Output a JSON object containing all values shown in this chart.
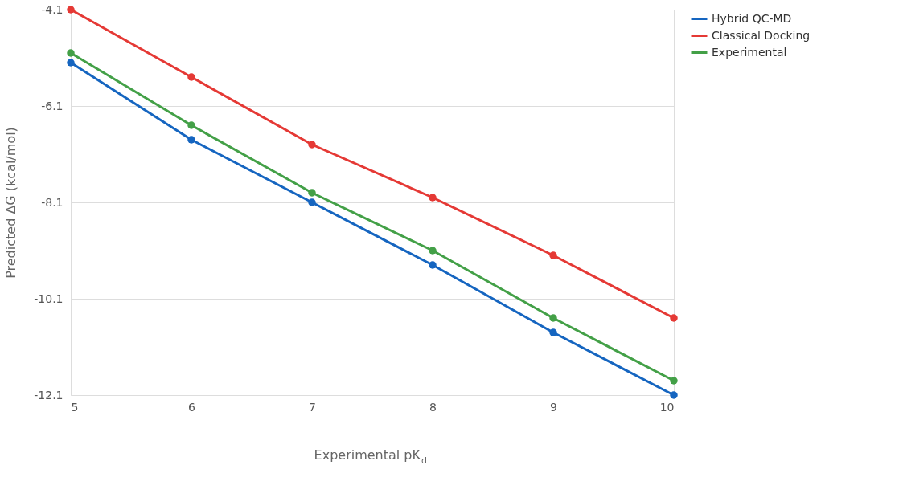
{
  "chart_data": {
    "type": "line",
    "xlabel": "Experimental pK$_{d}$",
    "ylabel": "Predicted ΔG (kcal/mol)",
    "x": [
      5,
      6,
      7,
      8,
      9,
      10
    ],
    "series": [
      {
        "name": "Hybrid QC-MD",
        "color": "#1565c0",
        "values": [
          -5.2,
          -6.8,
          -8.1,
          -9.4,
          -10.8,
          -12.1
        ]
      },
      {
        "name": "Classical Docking",
        "color": "#e53935",
        "values": [
          -4.1,
          -5.5,
          -6.9,
          -8.0,
          -9.2,
          -10.5
        ]
      },
      {
        "name": "Experimental",
        "color": "#43a047",
        "values": [
          -5.0,
          -6.5,
          -7.9,
          -9.1,
          -10.5,
          -11.8
        ]
      }
    ],
    "xlim": [
      5,
      10
    ],
    "xticks": [
      5,
      6,
      7,
      8,
      9,
      10
    ],
    "ylim": [
      -12.1,
      -4.1
    ],
    "yticks": [
      -12.1,
      -10.1,
      -8.1,
      -6.1,
      -4.1
    ],
    "grid": "y",
    "legend": "top right",
    "marker": "circle",
    "line_style": "solid"
  }
}
